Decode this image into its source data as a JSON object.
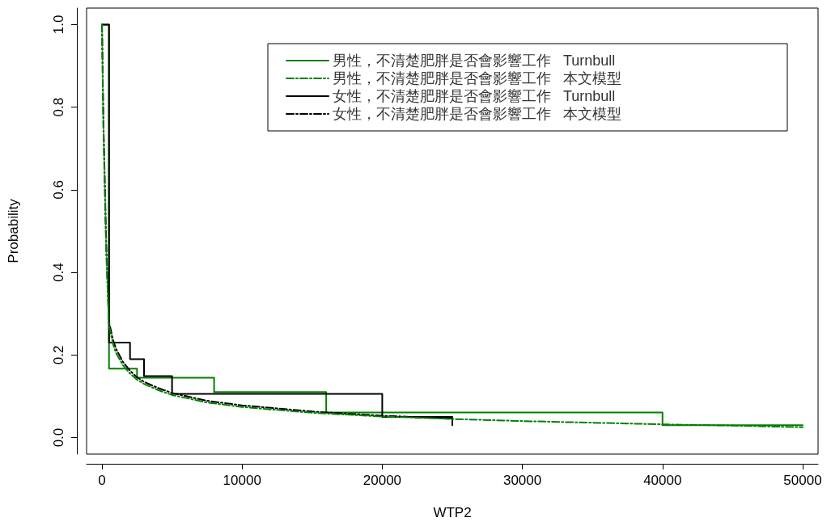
{
  "chart_data": {
    "type": "step",
    "xlabel": "WTP2",
    "ylabel": "Probability",
    "xlim": [
      -1100,
      51100
    ],
    "xticks": [
      0,
      10000,
      20000,
      30000,
      40000,
      50000
    ],
    "ylim": [
      -0.04,
      1.04
    ],
    "yticks": [
      {
        "value": 0,
        "label": "0.0"
      },
      0.2,
      0.4,
      0.6,
      0.8,
      {
        "value": 1,
        "label": "1.0"
      }
    ],
    "grid": false,
    "legend": "top right",
    "marker": "none",
    "series": [
      {
        "name": "男性，不清楚肥胖是否會影響工作   Turnbull",
        "color": "#008000",
        "line_style": "solid",
        "x": [
          0,
          500,
          2500,
          8000,
          16000,
          40000,
          50000
        ],
        "values": [
          1.0,
          0.167,
          0.145,
          0.11,
          0.061,
          0.03,
          0.03
        ]
      },
      {
        "name": "男性，不清楚肥胖是否會影響工作   本文模型",
        "type": "line",
        "color": "#008000",
        "line_style": "dashdot",
        "x": [
          0,
          100,
          200,
          300,
          500,
          800,
          1000,
          1500,
          2000,
          2500,
          3000,
          4000,
          5000,
          7500,
          10000,
          15000,
          20000,
          25000,
          30000,
          35000,
          40000,
          45000,
          50000
        ],
        "values": [
          1.0,
          0.75,
          0.6,
          0.45,
          0.27,
          0.225,
          0.205,
          0.175,
          0.155,
          0.14,
          0.13,
          0.115,
          0.103,
          0.085,
          0.074,
          0.06,
          0.051,
          0.045,
          0.04,
          0.036,
          0.032,
          0.029,
          0.025
        ]
      },
      {
        "name": "女性，不清楚肥胖是否會影響工作   Turnbull",
        "color": "#000000",
        "line_style": "solid",
        "x": [
          0,
          500,
          2000,
          3000,
          5000,
          20000,
          25000,
          25000
        ],
        "values": [
          1.0,
          0.23,
          0.19,
          0.149,
          0.106,
          0.05,
          0.05,
          0.03
        ]
      },
      {
        "name": "女性，不清楚肥胖是否會影響工作   本文模型",
        "type": "line",
        "color": "#000000",
        "line_style": "dashdot",
        "x": [
          0,
          100,
          200,
          300,
          500,
          800,
          1000,
          1500,
          2000,
          2500,
          3000,
          4000,
          5000,
          7500,
          10000,
          15000,
          20000,
          25000
        ],
        "values": [
          1.0,
          0.77,
          0.62,
          0.47,
          0.28,
          0.235,
          0.215,
          0.183,
          0.162,
          0.146,
          0.135,
          0.12,
          0.108,
          0.089,
          0.078,
          0.063,
          0.053,
          0.046
        ]
      }
    ]
  }
}
